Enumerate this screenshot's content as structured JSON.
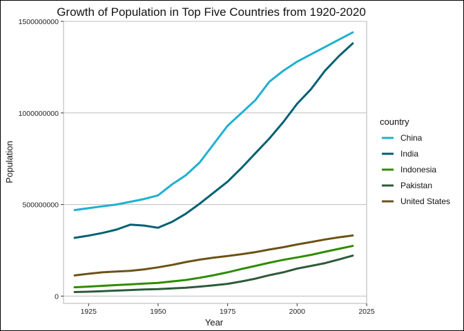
{
  "chart_data": {
    "type": "line",
    "title": "Growth of Population in Top Five Countries from 1920-2020",
    "xlabel": "Year",
    "ylabel": "Population",
    "xlim": [
      1916,
      2025
    ],
    "ylim": [
      -40000000,
      1500000000
    ],
    "xticks": [
      1925,
      1950,
      1975,
      2000,
      2025
    ],
    "xtick_labels": [
      "1925",
      "1950",
      "1975",
      "2000",
      "2025"
    ],
    "yticks": [
      0,
      500000000,
      1000000000,
      1500000000
    ],
    "ytick_labels": [
      "0",
      "500000000",
      "1000000000",
      "1500000000"
    ],
    "grid": "horizontal major lines",
    "legend": {
      "title": "country",
      "position": "right"
    },
    "x": [
      1920,
      1925,
      1930,
      1935,
      1940,
      1945,
      1950,
      1955,
      1960,
      1965,
      1970,
      1975,
      1980,
      1985,
      1990,
      1995,
      2000,
      2005,
      2010,
      2015,
      2020
    ],
    "series": [
      {
        "name": "China",
        "color": "#1eb0cf",
        "values": [
          470000000,
          480000000,
          490000000,
          500000000,
          515000000,
          530000000,
          550000000,
          610000000,
          660000000,
          730000000,
          830000000,
          930000000,
          1000000000,
          1070000000,
          1170000000,
          1230000000,
          1280000000,
          1320000000,
          1360000000,
          1400000000,
          1440000000
        ]
      },
      {
        "name": "India",
        "color": "#005f73",
        "values": [
          318000000,
          330000000,
          345000000,
          363000000,
          390000000,
          385000000,
          373000000,
          405000000,
          450000000,
          505000000,
          565000000,
          625000000,
          700000000,
          780000000,
          860000000,
          950000000,
          1050000000,
          1130000000,
          1230000000,
          1310000000,
          1380000000
        ]
      },
      {
        "name": "Indonesia",
        "color": "#2e8b00",
        "values": [
          48000000,
          52000000,
          56000000,
          60000000,
          64000000,
          68000000,
          72000000,
          80000000,
          88000000,
          100000000,
          114000000,
          130000000,
          148000000,
          165000000,
          182000000,
          198000000,
          211000000,
          225000000,
          242000000,
          258000000,
          274000000
        ]
      },
      {
        "name": "Pakistan",
        "color": "#2d5a3a",
        "values": [
          22000000,
          24000000,
          27000000,
          30000000,
          33000000,
          36000000,
          38000000,
          42000000,
          46000000,
          52000000,
          59000000,
          67000000,
          80000000,
          95000000,
          114000000,
          130000000,
          150000000,
          165000000,
          180000000,
          200000000,
          221000000
        ]
      },
      {
        "name": "United States",
        "color": "#6b5215",
        "values": [
          113000000,
          122000000,
          130000000,
          134000000,
          138000000,
          146000000,
          157000000,
          170000000,
          186000000,
          199000000,
          210000000,
          219000000,
          229000000,
          240000000,
          254000000,
          267000000,
          282000000,
          295000000,
          309000000,
          321000000,
          331000000
        ]
      }
    ]
  }
}
